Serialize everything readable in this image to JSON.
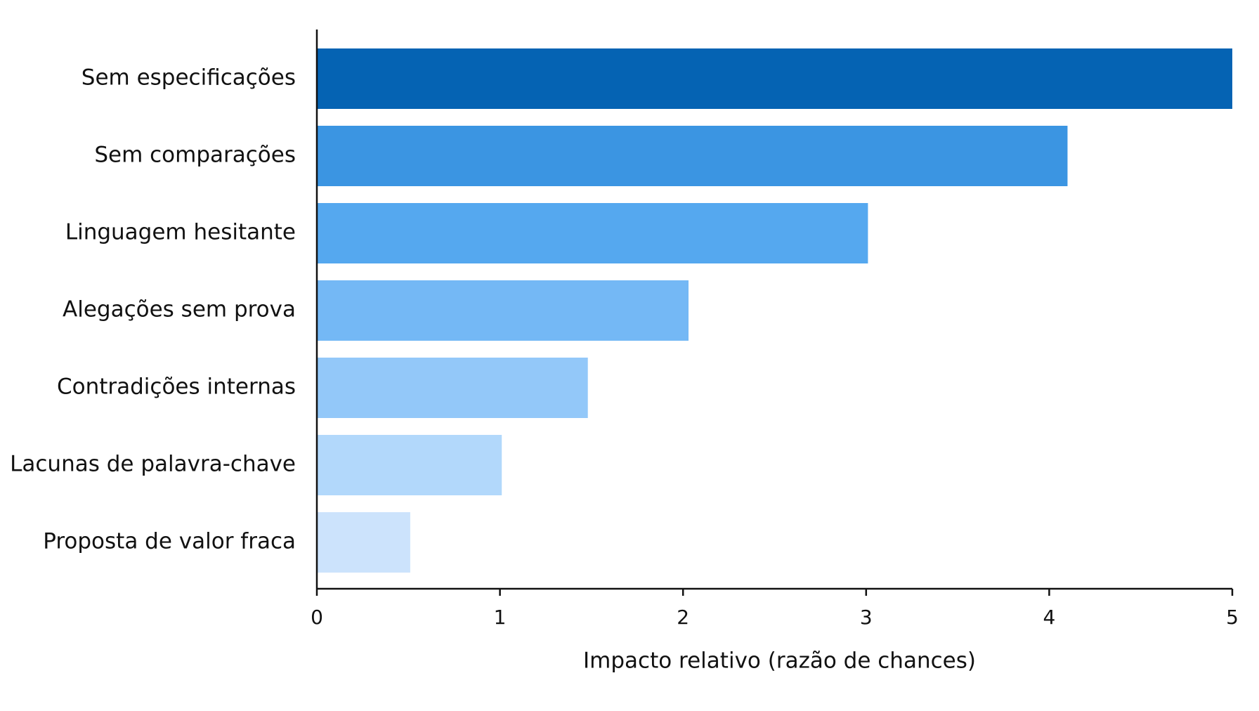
{
  "chart_data": {
    "type": "bar",
    "orientation": "horizontal",
    "categories": [
      "Sem especificações",
      "Sem comparações",
      "Linguagem hesitante",
      "Alegações sem prova",
      "Contradições internas",
      "Lacunas de palavra-chave",
      "Proposta de valor fraca"
    ],
    "values": [
      5.0,
      4.1,
      3.01,
      2.03,
      1.48,
      1.01,
      0.51
    ],
    "colors": [
      "#0563b3",
      "#3b95e2",
      "#55a8ef",
      "#74b8f5",
      "#93c8f9",
      "#b2d8fb",
      "#cce3fc"
    ],
    "title": "",
    "xlabel": "Impacto relativo (razão de chances)",
    "ylabel": "",
    "xlim": [
      0,
      5
    ],
    "xticks": [
      "0",
      "1",
      "2",
      "3",
      "4",
      "5"
    ],
    "grid": false,
    "legend": "none"
  }
}
